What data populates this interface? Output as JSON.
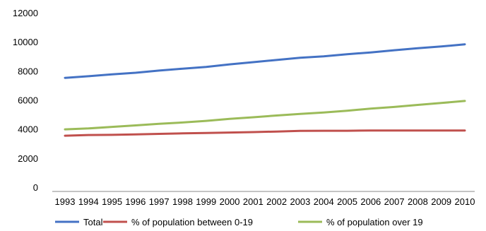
{
  "chart_data": {
    "type": "line",
    "title": "",
    "xlabel": "",
    "ylabel": "",
    "x": [
      "1993",
      "1994",
      "1995",
      "1996",
      "1997",
      "1998",
      "1999",
      "2000",
      "2001",
      "2002",
      "2003",
      "2004",
      "2005",
      "2006",
      "2007",
      "2008",
      "2009",
      "2010"
    ],
    "ylim": [
      0,
      12000
    ],
    "yticks": [
      "0",
      "2000",
      "4000",
      "6000",
      "8000",
      "10000",
      "12000"
    ],
    "grid": false,
    "legend_position": "bottom",
    "series": [
      {
        "name": "Total",
        "color": "#4472C4",
        "values": [
          7520,
          7630,
          7760,
          7870,
          8020,
          8150,
          8270,
          8450,
          8600,
          8750,
          8900,
          9000,
          9150,
          9270,
          9420,
          9560,
          9680,
          9830
        ]
      },
      {
        "name": "% of population between 0-19",
        "color": "#C0504D",
        "values": [
          3540,
          3590,
          3600,
          3630,
          3670,
          3700,
          3730,
          3760,
          3790,
          3830,
          3870,
          3880,
          3880,
          3900,
          3900,
          3900,
          3900,
          3900
        ]
      },
      {
        "name": "% of population over 19",
        "color": "#9BBB59",
        "values": [
          3980,
          4040,
          4150,
          4250,
          4360,
          4450,
          4560,
          4700,
          4810,
          4930,
          5040,
          5140,
          5260,
          5400,
          5520,
          5660,
          5790,
          5930
        ]
      }
    ]
  }
}
